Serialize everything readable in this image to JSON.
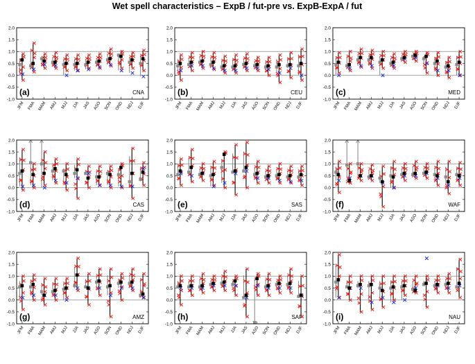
{
  "figure_title": "Wet spell characteristics – ExpB / fut-pre vs. ExpB-ExpA / fut",
  "colors": {
    "red": "#e8221c",
    "blue": "#1f2fd6",
    "black": "#000000",
    "gray": "#8c8c8c"
  },
  "chart_data": {
    "type": "scatter",
    "months": [
      "JFM",
      "FMA",
      "MAM",
      "AMJ",
      "MJJ",
      "JJA",
      "JAS",
      "ASO",
      "SON",
      "OND",
      "NDJ",
      "DJF"
    ],
    "ylim": [
      -1.0,
      2.0
    ],
    "yticks": [
      "-1.0",
      "-0.5",
      "0.0",
      "0.5",
      "1.0",
      "1.5",
      "2.0"
    ],
    "reference_lines": [
      0.0,
      1.0
    ],
    "panels": [
      {
        "label": "(a)",
        "region": "CNA",
        "black_mean": [
          0.65,
          0.5,
          0.6,
          0.55,
          0.5,
          0.5,
          0.55,
          0.6,
          0.7,
          0.8,
          0.65,
          0.7
        ],
        "gray_mean": [
          0.45,
          0.4,
          0.7,
          0.55,
          0.45,
          0.45,
          0.45,
          0.55,
          0.65,
          0.85,
          0.55,
          0.5
        ],
        "red_min": [
          -0.2,
          0.15,
          0.3,
          0.3,
          0.2,
          0.2,
          0.3,
          0.3,
          0.4,
          0.3,
          0.3,
          0.2
        ],
        "red_max": [
          0.9,
          1.35,
          0.9,
          0.95,
          0.85,
          0.85,
          0.85,
          0.9,
          1.1,
          1.0,
          0.95,
          1.05
        ],
        "blue": [
          0.05,
          0.25,
          0.45,
          0.4,
          0.0,
          0.2,
          0.25,
          0.35,
          0.45,
          0.2,
          0.1,
          -0.05
        ]
      },
      {
        "label": "(b)",
        "region": "CEU",
        "black_mean": [
          0.5,
          0.55,
          0.6,
          0.55,
          0.4,
          0.4,
          0.5,
          0.45,
          0.4,
          0.45,
          0.45,
          0.5
        ],
        "gray_mean": [
          0.4,
          0.45,
          0.55,
          0.45,
          0.35,
          0.35,
          0.45,
          0.4,
          0.35,
          0.35,
          0.4,
          0.4
        ],
        "red_min": [
          -0.2,
          0.2,
          0.3,
          0.25,
          0.1,
          0.1,
          0.2,
          0.2,
          0.0,
          -0.3,
          -0.1,
          -0.2
        ],
        "red_max": [
          0.85,
          0.95,
          1.0,
          0.95,
          0.8,
          0.85,
          0.9,
          0.75,
          0.75,
          0.85,
          0.95,
          1.1
        ],
        "blue": [
          0.2,
          0.4,
          0.4,
          0.3,
          0.2,
          0.2,
          0.3,
          0.3,
          0.25,
          0.1,
          0.3,
          0.0
        ]
      },
      {
        "label": "(c)",
        "region": "MED",
        "black_mean": [
          0.55,
          0.45,
          0.75,
          0.75,
          0.65,
          0.55,
          0.75,
          0.85,
          0.8,
          0.6,
          0.4,
          0.55
        ],
        "gray_mean": [
          0.45,
          0.4,
          0.65,
          0.65,
          0.55,
          0.5,
          0.7,
          0.8,
          0.7,
          0.5,
          0.35,
          0.45
        ],
        "red_min": [
          0.1,
          0.2,
          0.35,
          0.3,
          0.3,
          0.3,
          0.55,
          0.6,
          0.1,
          0.0,
          -0.1,
          0.0
        ],
        "red_max": [
          0.95,
          1.0,
          1.1,
          1.05,
          1.0,
          0.9,
          1.0,
          1.0,
          0.95,
          0.95,
          0.75,
          1.0
        ],
        "blue": [
          0.0,
          0.3,
          0.4,
          0.4,
          0.0,
          0.4,
          0.7,
          0.75,
          0.5,
          0.2,
          0.2,
          0.0
        ]
      },
      {
        "label": "(d)",
        "region": "CAS",
        "black_mean": [
          0.7,
          0.55,
          0.6,
          0.8,
          0.55,
          0.75,
          0.4,
          0.45,
          0.55,
          0.85,
          0.6,
          0.65
        ],
        "gray_mean": [
          0.6,
          1.05,
          1.0,
          0.7,
          0.7,
          0.6,
          0.6,
          0.45,
          0.6,
          0.55,
          0.25,
          0.35
        ],
        "red_min": [
          -0.1,
          0.0,
          0.1,
          0.2,
          -0.1,
          -0.45,
          0.0,
          0.1,
          0.0,
          0.0,
          -0.45,
          0.1
        ],
        "red_max": [
          1.6,
          1.0,
          1.5,
          1.2,
          1.0,
          1.2,
          0.9,
          0.9,
          0.9,
          1.0,
          1.65,
          1.05
        ],
        "blue": [
          0.05,
          0.1,
          0.0,
          0.3,
          0.2,
          0.4,
          0.6,
          0.1,
          0.1,
          0.05,
          0.05,
          0.8
        ]
      },
      {
        "label": "(e)",
        "region": "SAS",
        "black_mean": [
          0.7,
          0.85,
          0.6,
          0.55,
          1.4,
          0.7,
          0.85,
          0.6,
          0.5,
          0.55,
          0.5,
          0.55
        ],
        "gray_mean": [
          0.55,
          0.65,
          0.55,
          0.5,
          0.85,
          0.65,
          0.7,
          0.55,
          0.45,
          0.5,
          0.45,
          0.45
        ],
        "red_min": [
          0.1,
          0.25,
          0.3,
          0.1,
          0.0,
          -0.3,
          0.0,
          0.2,
          0.2,
          0.2,
          0.2,
          0.1
        ],
        "red_max": [
          1.2,
          1.6,
          1.0,
          1.1,
          1.5,
          1.8,
          1.9,
          1.1,
          0.9,
          1.0,
          0.9,
          0.9
        ],
        "blue": [
          0.6,
          0.5,
          0.6,
          0.05,
          0.2,
          0.6,
          0.7,
          0.4,
          0.4,
          0.3,
          0.25,
          0.3
        ]
      },
      {
        "label": "(f)",
        "region": "WAF",
        "black_mean": [
          0.55,
          0.3,
          0.5,
          0.5,
          0.25,
          0.45,
          0.6,
          0.6,
          0.65,
          0.5,
          0.25,
          0.5
        ],
        "gray_mean": [
          0.65,
          0.95,
          1.0,
          0.45,
          0.4,
          0.5,
          0.55,
          0.55,
          0.6,
          0.55,
          0.45,
          0.55
        ],
        "red_min": [
          -0.2,
          0.2,
          0.3,
          0.3,
          -0.8,
          0.0,
          0.3,
          0.4,
          0.4,
          0.1,
          -0.25,
          0.1
        ],
        "red_max": [
          1.1,
          1.0,
          1.0,
          0.95,
          0.9,
          1.1,
          1.0,
          1.1,
          1.0,
          1.1,
          1.1,
          1.05
        ],
        "blue": [
          0.3,
          0.4,
          0.5,
          0.5,
          0.2,
          0.0,
          0.5,
          0.5,
          0.6,
          0.4,
          0.1,
          0.4
        ]
      },
      {
        "label": "(g)",
        "region": "AMZ",
        "black_mean": [
          0.6,
          0.65,
          0.2,
          0.4,
          0.5,
          1.05,
          0.5,
          0.8,
          0.6,
          0.75,
          0.75,
          0.25
        ],
        "gray_mean": [
          0.55,
          0.55,
          0.35,
          0.35,
          0.45,
          0.6,
          0.55,
          0.75,
          0.55,
          0.7,
          0.7,
          0.2
        ],
        "red_min": [
          -0.4,
          0.0,
          -0.2,
          0.0,
          0.1,
          0.4,
          -0.2,
          0.2,
          -0.7,
          0.0,
          0.4,
          0.1
        ],
        "red_max": [
          1.0,
          1.05,
          0.9,
          0.9,
          0.9,
          1.75,
          1.1,
          1.3,
          1.3,
          1.1,
          1.3,
          1.1
        ],
        "blue": [
          0.1,
          0.2,
          0.2,
          0.2,
          0.0,
          0.5,
          0.5,
          0.5,
          0.2,
          0.5,
          0.5,
          0.1
        ]
      },
      {
        "label": "(h)",
        "region": "SAF",
        "black_mean": [
          0.6,
          0.6,
          0.6,
          0.7,
          0.75,
          0.8,
          0.2,
          0.9,
          0.6,
          0.7,
          0.7,
          0.2
        ],
        "gray_mean": [
          0.55,
          0.55,
          0.55,
          0.65,
          0.7,
          0.65,
          0.1,
          -0.95,
          0.55,
          0.65,
          0.65,
          0.15
        ],
        "red_min": [
          -0.2,
          0.2,
          0.3,
          0.4,
          0.4,
          0.2,
          -0.7,
          0.2,
          0.2,
          0.3,
          0.3,
          -0.7
        ],
        "red_max": [
          1.0,
          1.0,
          1.1,
          1.0,
          1.2,
          1.0,
          1.3,
          1.1,
          1.1,
          1.0,
          1.3,
          1.0
        ],
        "blue": [
          0.5,
          0.5,
          0.5,
          0.6,
          0.6,
          0.6,
          0.1,
          0.6,
          0.5,
          0.5,
          0.5,
          0.2
        ]
      },
      {
        "label": "(i)",
        "region": "NAU",
        "black_mean": [
          0.85,
          0.5,
          0.65,
          0.65,
          0.4,
          0.55,
          0.6,
          0.4,
          0.7,
          0.65,
          0.7,
          0.7
        ],
        "gray_mean": [
          0.75,
          0.55,
          0.6,
          0.6,
          0.5,
          0.5,
          0.55,
          0.45,
          0.65,
          0.6,
          0.65,
          0.55
        ],
        "red_min": [
          0.1,
          0.0,
          -0.5,
          -0.4,
          -0.3,
          0.0,
          0.2,
          0.3,
          -0.3,
          0.3,
          0.3,
          0.1
        ],
        "red_max": [
          1.9,
          1.0,
          1.0,
          1.0,
          1.0,
          1.0,
          1.0,
          1.0,
          1.0,
          1.0,
          1.1,
          1.7
        ],
        "blue": [
          0.1,
          0.5,
          0.5,
          -0.1,
          0.1,
          -0.1,
          0.0,
          0.5,
          1.75,
          0.6,
          0.5,
          0.6
        ]
      }
    ]
  }
}
